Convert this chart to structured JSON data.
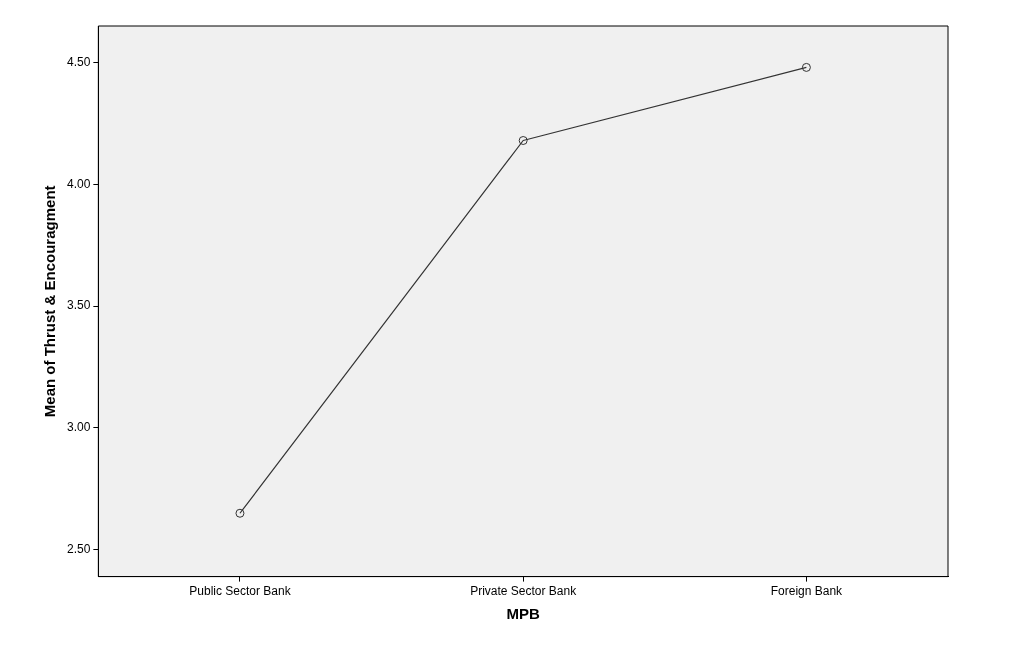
{
  "chart_data": {
    "type": "line",
    "xlabel": "MPB",
    "ylabel": "Mean of Thrust & Encouragment",
    "categories": [
      "Public Sector Bank",
      "Private Sector Bank",
      "Foreign Bank"
    ],
    "series": [
      {
        "color": "#333333",
        "values": [
          2.65,
          4.18,
          4.48
        ]
      }
    ],
    "ylim": [
      2.39,
      4.65
    ],
    "yticks": [
      {
        "value": 2.5,
        "label": "2.50"
      },
      {
        "value": 3,
        "label": "3.00"
      },
      {
        "value": 3.5,
        "label": "3.50"
      },
      {
        "value": 4,
        "label": "4.00"
      },
      {
        "value": 4.5,
        "label": "4.50"
      }
    ],
    "grid": false,
    "legend": false,
    "marker": "circle",
    "line_style": "solid"
  }
}
